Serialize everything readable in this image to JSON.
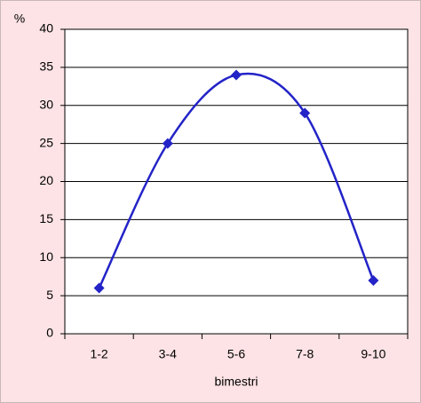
{
  "chart_data": {
    "type": "line",
    "y_label": "%",
    "x_label": "bimestri",
    "categories": [
      "1-2",
      "3-4",
      "5-6",
      "7-8",
      "9-10"
    ],
    "values": [
      6,
      25,
      34,
      29,
      7
    ],
    "color": "#2323c8",
    "smooth": true,
    "ylim": [
      0,
      40
    ],
    "yticks": [
      0,
      5,
      10,
      15,
      20,
      25,
      30,
      35,
      40
    ],
    "grid": true
  }
}
